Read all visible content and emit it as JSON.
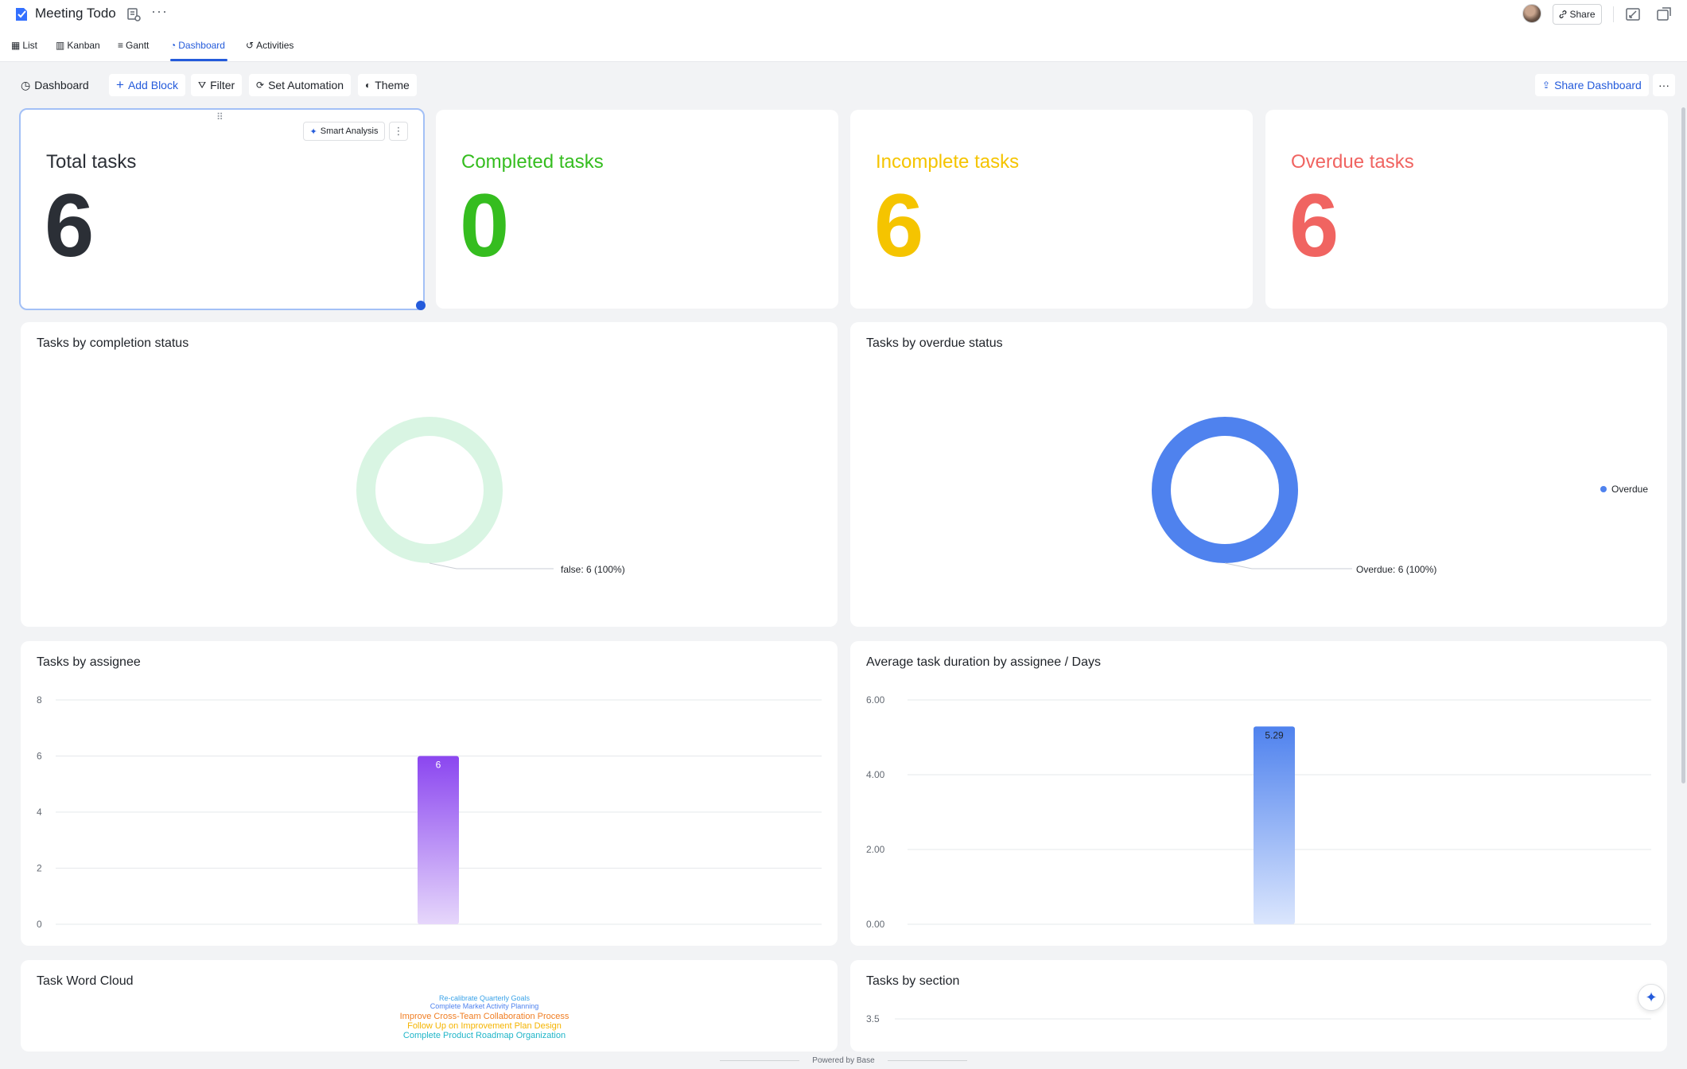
{
  "app": {
    "title": "Meeting Todo",
    "share_label": "Share"
  },
  "view_tabs": [
    {
      "label": "List",
      "icon": "table-icon"
    },
    {
      "label": "Kanban",
      "icon": "kanban-icon"
    },
    {
      "label": "Gantt",
      "icon": "gantt-icon"
    },
    {
      "label": "Dashboard",
      "icon": "dashboard-icon",
      "active": true
    },
    {
      "label": "Activities",
      "icon": "activity-icon"
    }
  ],
  "toolbar": {
    "dashboard_label": "Dashboard",
    "add_block_label": "Add Block",
    "filter_label": "Filter",
    "automation_label": "Set Automation",
    "theme_label": "Theme",
    "share_dashboard_label": "Share Dashboard"
  },
  "stats": [
    {
      "label": "Total tasks",
      "value": "6",
      "color": "#2b2f36"
    },
    {
      "label": "Completed tasks",
      "value": "0",
      "color": "#35bd1f"
    },
    {
      "label": "Incomplete tasks",
      "value": "6",
      "color": "#f5c400"
    },
    {
      "label": "Overdue tasks",
      "value": "6",
      "color": "#f06461"
    }
  ],
  "smart_analysis_label": "Smart Analysis",
  "chart_data": [
    {
      "type": "pie",
      "title": "Tasks by completion status",
      "donut": true,
      "slices": [
        {
          "label": "false",
          "value": 6,
          "percent": "100%",
          "color": "#d9f5e3"
        }
      ],
      "data_label": "false: 6 (100%)"
    },
    {
      "type": "pie",
      "title": "Tasks by overdue status",
      "donut": true,
      "slices": [
        {
          "label": "Overdue",
          "value": 6,
          "percent": "100%",
          "color": "#4f82ee"
        }
      ],
      "data_label": "Overdue: 6 (100%)",
      "legend": {
        "position": "right",
        "items": [
          "Overdue"
        ]
      }
    },
    {
      "type": "bar",
      "title": "Tasks by assignee",
      "categories": [
        ""
      ],
      "values": [
        6
      ],
      "value_labels": [
        "6"
      ],
      "ylim": [
        0,
        8
      ],
      "yticks": [
        "0",
        "2",
        "4",
        "6",
        "8"
      ],
      "colors": {
        "top": "#8b46f0",
        "bottom": "#e6d7fb"
      },
      "grid": true
    },
    {
      "type": "bar",
      "title": "Average task duration by assignee / Days",
      "categories": [
        ""
      ],
      "values": [
        5.29
      ],
      "value_labels": [
        "5.29"
      ],
      "ylim": [
        0,
        6
      ],
      "yticks": [
        "0.00",
        "2.00",
        "4.00",
        "6.00"
      ],
      "colors": {
        "top": "#4f82ee",
        "bottom": "#dbe6fd"
      },
      "grid": true
    },
    {
      "type": "bar",
      "title": "Tasks by section",
      "yticks": [
        "3.5"
      ],
      "grid": true
    }
  ],
  "word_cloud": {
    "title": "Task Word Cloud",
    "words": [
      {
        "text": "Re-calibrate Quarterly Goals",
        "color": "#3ba3e8",
        "size": 9
      },
      {
        "text": "Complete Market Activity Planning",
        "color": "#4f82ee",
        "size": 9
      },
      {
        "text": "Improve Cross-Team Collaboration Process",
        "color": "#f07d22",
        "size": 11
      },
      {
        "text": "Follow Up on Improvement Plan Design",
        "color": "#f5b400",
        "size": 11
      },
      {
        "text": "Complete Product Roadmap Organization",
        "color": "#1fb5c8",
        "size": 11
      }
    ]
  },
  "footer": {
    "label": "Powered by Base"
  }
}
